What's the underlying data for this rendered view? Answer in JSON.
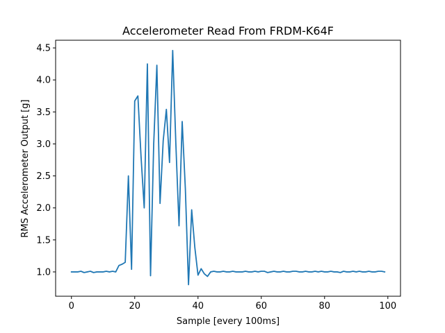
{
  "chart_data": {
    "type": "line",
    "title": "Accelerometer Read From FRDM-K64F",
    "xlabel": "Sample [every 100ms]",
    "ylabel": "RMS Accelerometer Output [g]",
    "xlim": [
      -5,
      104
    ],
    "ylim": [
      0.62,
      4.62
    ],
    "xticks": [
      0,
      20,
      40,
      60,
      80,
      100
    ],
    "yticks": [
      1.0,
      1.5,
      2.0,
      2.5,
      3.0,
      3.5,
      4.0,
      4.5
    ],
    "xtick_labels": [
      "0",
      "20",
      "40",
      "60",
      "80",
      "100"
    ],
    "ytick_labels": [
      "1.0",
      "1.5",
      "2.0",
      "2.5",
      "3.0",
      "3.5",
      "4.0",
      "4.5"
    ],
    "grid": false,
    "series": [
      {
        "color": "#1f77b4",
        "x": [
          0,
          1,
          2,
          3,
          4,
          5,
          6,
          7,
          8,
          9,
          10,
          11,
          12,
          13,
          14,
          15,
          16,
          17,
          18,
          19,
          20,
          21,
          22,
          23,
          24,
          25,
          26,
          27,
          28,
          29,
          30,
          31,
          32,
          33,
          34,
          35,
          36,
          37,
          38,
          39,
          40,
          41,
          42,
          43,
          44,
          45,
          46,
          47,
          48,
          49,
          50,
          51,
          52,
          53,
          54,
          55,
          56,
          57,
          58,
          59,
          60,
          61,
          62,
          63,
          64,
          65,
          66,
          67,
          68,
          69,
          70,
          71,
          72,
          73,
          74,
          75,
          76,
          77,
          78,
          79,
          80,
          81,
          82,
          83,
          84,
          85,
          86,
          87,
          88,
          89,
          90,
          91,
          92,
          93,
          94,
          95,
          96,
          97,
          98,
          99
        ],
        "y": [
          1.0,
          1.0,
          1.0,
          1.01,
          0.99,
          1.0,
          1.01,
          0.99,
          1.0,
          1.0,
          1.0,
          1.01,
          1.0,
          1.01,
          1.0,
          1.1,
          1.12,
          1.15,
          2.5,
          1.04,
          3.67,
          3.75,
          2.8,
          2.0,
          4.25,
          0.94,
          3.0,
          4.23,
          2.07,
          3.05,
          3.54,
          2.71,
          4.46,
          3.0,
          1.72,
          3.35,
          2.3,
          0.8,
          1.97,
          1.38,
          0.95,
          1.05,
          0.97,
          0.93,
          1.0,
          1.01,
          1.0,
          1.0,
          1.01,
          1.0,
          1.0,
          1.01,
          1.0,
          1.0,
          1.0,
          1.01,
          1.0,
          1.0,
          1.01,
          1.0,
          1.01,
          1.01,
          0.99,
          1.0,
          1.01,
          1.0,
          1.0,
          1.01,
          1.0,
          1.0,
          1.01,
          1.01,
          1.0,
          1.0,
          1.01,
          1.0,
          1.0,
          1.01,
          1.0,
          1.01,
          1.0,
          1.0,
          1.01,
          1.0,
          1.0,
          0.99,
          1.01,
          1.0,
          1.0,
          1.01,
          1.0,
          1.01,
          1.0,
          1.0,
          1.01,
          1.0,
          1.0,
          1.01,
          1.01,
          1.0
        ]
      }
    ]
  }
}
